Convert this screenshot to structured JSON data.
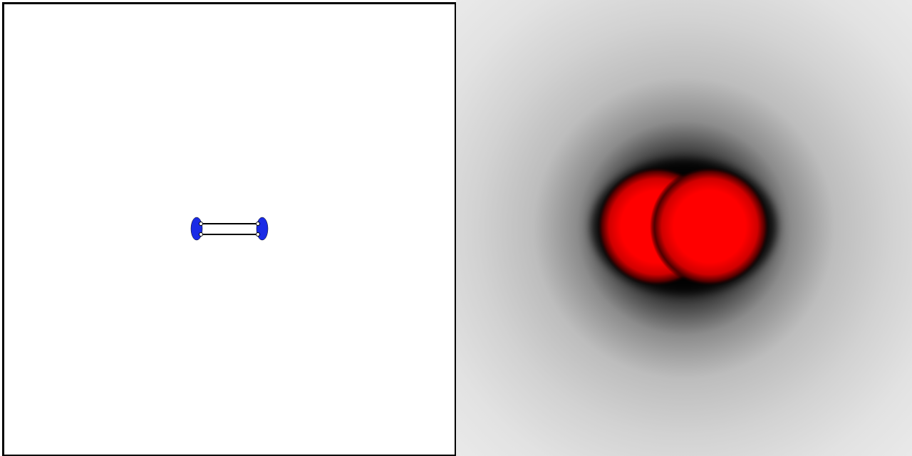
{
  "scene": {
    "left_view": {
      "background_color": "#ffffff",
      "border_color": "#000000",
      "node_fill_color": "#1a2be6",
      "node_stroke_color": "#000000",
      "link_stroke_color": "#000000",
      "node_count": 2,
      "link_count": 2
    },
    "right_view": {
      "core_color": "#ff0000",
      "halo_color": "#000000",
      "far_field_color": "#ebebeb",
      "blob_count": 2
    }
  }
}
